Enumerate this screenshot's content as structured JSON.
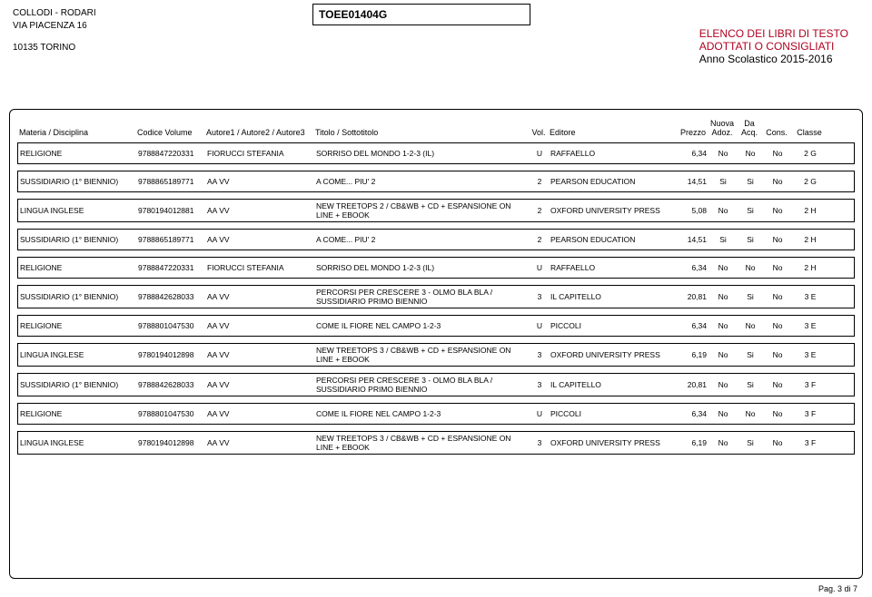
{
  "header": {
    "school_name": "COLLODI - RODARI",
    "address": "VIA PIACENZA 16",
    "city": "10135  TORINO",
    "code": "TOEE01404G",
    "title1": "ELENCO DEI LIBRI DI TESTO",
    "title2": "ADOTTATI O CONSIGLIATI",
    "year": "Anno Scolastico 2015-2016"
  },
  "columns": {
    "materia": "Materia / Disciplina",
    "codice": "Codice Volume",
    "autore": "Autore1 / Autore2 / Autore3",
    "titolo": "Titolo / Sottotitolo",
    "vol": "Vol.",
    "editore": "Editore",
    "prezzo": "Prezzo",
    "nuova": "Nuova Adoz.",
    "da": "Da Acq.",
    "cons": "Cons.",
    "classe": "Classe"
  },
  "rows": [
    {
      "materia": "RELIGIONE",
      "codice": "9788847220331",
      "autore": "FIORUCCI STEFANIA",
      "titolo": "SORRISO DEL MONDO 1-2-3 (IL)",
      "vol": "U",
      "editore": "RAFFAELLO",
      "prezzo": "6,34",
      "na": "No",
      "da": "No",
      "cons": "No",
      "cls": "2 G"
    },
    {
      "materia": "SUSSIDIARIO (1° BIENNIO)",
      "codice": "9788865189771",
      "autore": "AA VV",
      "titolo": "A COME... PIU' 2",
      "vol": "2",
      "editore": "PEARSON EDUCATION",
      "prezzo": "14,51",
      "na": "Si",
      "da": "Si",
      "cons": "No",
      "cls": "2 G"
    },
    {
      "materia": "LINGUA INGLESE",
      "codice": "9780194012881",
      "autore": "AA VV",
      "titolo": "NEW TREETOPS 2 / CB&WB + CD + ESPANSIONE ON LINE + EBOOK",
      "vol": "2",
      "editore": "OXFORD UNIVERSITY PRESS",
      "prezzo": "5,08",
      "na": "No",
      "da": "Si",
      "cons": "No",
      "cls": "2 H"
    },
    {
      "materia": "SUSSIDIARIO (1° BIENNIO)",
      "codice": "9788865189771",
      "autore": "AA VV",
      "titolo": "A COME... PIU' 2",
      "vol": "2",
      "editore": "PEARSON EDUCATION",
      "prezzo": "14,51",
      "na": "Si",
      "da": "Si",
      "cons": "No",
      "cls": "2 H"
    },
    {
      "materia": "RELIGIONE",
      "codice": "9788847220331",
      "autore": "FIORUCCI STEFANIA",
      "titolo": "SORRISO DEL MONDO 1-2-3 (IL)",
      "vol": "U",
      "editore": "RAFFAELLO",
      "prezzo": "6,34",
      "na": "No",
      "da": "No",
      "cons": "No",
      "cls": "2 H"
    },
    {
      "materia": "SUSSIDIARIO (1° BIENNIO)",
      "codice": "9788842628033",
      "autore": "AA VV",
      "titolo": "PERCORSI PER CRESCERE 3 - OLMO BLA BLA / SUSSIDIARIO PRIMO BIENNIO",
      "vol": "3",
      "editore": "IL CAPITELLO",
      "prezzo": "20,81",
      "na": "No",
      "da": "Si",
      "cons": "No",
      "cls": "3 E"
    },
    {
      "materia": "RELIGIONE",
      "codice": "9788801047530",
      "autore": "AA VV",
      "titolo": "COME IL FIORE NEL CAMPO 1-2-3",
      "vol": "U",
      "editore": "PICCOLI",
      "prezzo": "6,34",
      "na": "No",
      "da": "No",
      "cons": "No",
      "cls": "3 E"
    },
    {
      "materia": "LINGUA INGLESE",
      "codice": "9780194012898",
      "autore": "AA VV",
      "titolo": "NEW TREETOPS 3 / CB&WB + CD + ESPANSIONE ON LINE + EBOOK",
      "vol": "3",
      "editore": "OXFORD UNIVERSITY PRESS",
      "prezzo": "6,19",
      "na": "No",
      "da": "Si",
      "cons": "No",
      "cls": "3 E"
    },
    {
      "materia": "SUSSIDIARIO (1° BIENNIO)",
      "codice": "9788842628033",
      "autore": "AA VV",
      "titolo": "PERCORSI PER CRESCERE 3 - OLMO BLA BLA / SUSSIDIARIO PRIMO BIENNIO",
      "vol": "3",
      "editore": "IL CAPITELLO",
      "prezzo": "20,81",
      "na": "No",
      "da": "Si",
      "cons": "No",
      "cls": "3 F"
    },
    {
      "materia": "RELIGIONE",
      "codice": "9788801047530",
      "autore": "AA VV",
      "titolo": "COME IL FIORE NEL CAMPO 1-2-3",
      "vol": "U",
      "editore": "PICCOLI",
      "prezzo": "6,34",
      "na": "No",
      "da": "No",
      "cons": "No",
      "cls": "3 F"
    },
    {
      "materia": "LINGUA INGLESE",
      "codice": "9780194012898",
      "autore": "AA VV",
      "titolo": "NEW TREETOPS 3 / CB&WB + CD + ESPANSIONE ON LINE + EBOOK",
      "vol": "3",
      "editore": "OXFORD UNIVERSITY PRESS",
      "prezzo": "6,19",
      "na": "No",
      "da": "Si",
      "cons": "No",
      "cls": "3 F"
    }
  ],
  "footer": {
    "page": "Pag. 3 di 7"
  }
}
